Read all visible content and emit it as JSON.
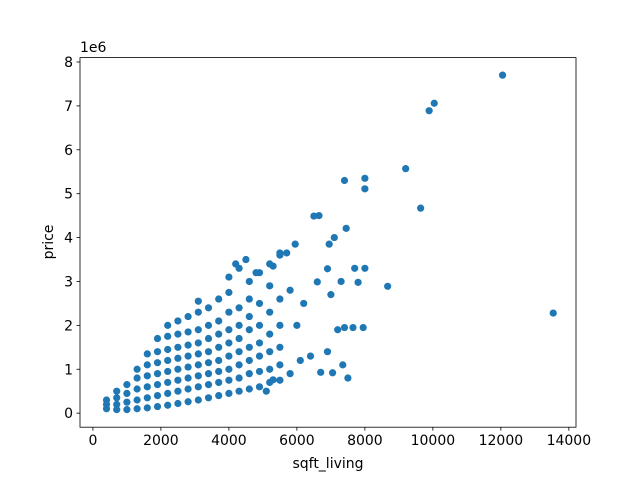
{
  "chart_data": {
    "type": "scatter",
    "xlabel": "sqft_living",
    "ylabel": "price",
    "y_offset_label": "1e6",
    "xlim": [
      -380,
      14210
    ],
    "ylim": [
      -0.32,
      8.1
    ],
    "xticks": [
      0,
      2000,
      4000,
      6000,
      8000,
      10000,
      12000,
      14000
    ],
    "yticks": [
      0,
      1,
      2,
      3,
      4,
      5,
      6,
      7,
      8
    ],
    "grid": false,
    "series": [
      {
        "color": "#1f77b4",
        "x": [
          400,
          400,
          400,
          700,
          700,
          700,
          700,
          1000,
          1000,
          1000,
          1000,
          1300,
          1300,
          1300,
          1300,
          1300,
          1600,
          1600,
          1600,
          1600,
          1600,
          1600,
          1900,
          1900,
          1900,
          1900,
          1900,
          1900,
          1900,
          2200,
          2200,
          2200,
          2200,
          2200,
          2200,
          2200,
          2200,
          2500,
          2500,
          2500,
          2500,
          2500,
          2500,
          2500,
          2500,
          2800,
          2800,
          2800,
          2800,
          2800,
          2800,
          2800,
          2800,
          3100,
          3100,
          3100,
          3100,
          3100,
          3100,
          3100,
          3100,
          3100,
          3400,
          3400,
          3400,
          3400,
          3400,
          3400,
          3400,
          3400,
          3700,
          3700,
          3700,
          3700,
          3700,
          3700,
          3700,
          3700,
          4000,
          4000,
          4000,
          4000,
          4000,
          4000,
          4000,
          4000,
          4000,
          4300,
          4300,
          4300,
          4300,
          4300,
          4300,
          4300,
          4300,
          4600,
          4600,
          4600,
          4600,
          4600,
          4600,
          4600,
          4600,
          4900,
          4900,
          4900,
          4900,
          4900,
          4900,
          4900,
          5200,
          5200,
          5200,
          5200,
          5200,
          5200,
          5200,
          5500,
          5500,
          5500,
          5500,
          5500,
          5500,
          12050,
          10040,
          9890,
          9200,
          8000,
          7400,
          8000,
          9640,
          6500,
          6650,
          7450,
          7100,
          6950,
          5950,
          5500,
          5700,
          13540,
          8670,
          8000,
          7700,
          7300,
          7800,
          6900,
          6600,
          7000,
          7400,
          7650,
          7950,
          7200,
          6900,
          7350,
          7050,
          7500,
          6700,
          6400,
          6100,
          5800,
          5300,
          5100,
          6200,
          6000,
          5800,
          4800,
          4200,
          4500,
          5300
        ],
        "values": [
          0.1,
          0.2,
          0.3,
          0.08,
          0.2,
          0.35,
          0.5,
          0.08,
          0.25,
          0.45,
          0.65,
          0.1,
          0.3,
          0.55,
          0.8,
          1.0,
          0.12,
          0.35,
          0.6,
          0.85,
          1.1,
          1.35,
          0.15,
          0.4,
          0.65,
          0.9,
          1.15,
          1.4,
          1.7,
          0.18,
          0.45,
          0.7,
          0.95,
          1.2,
          1.45,
          1.75,
          2.0,
          0.22,
          0.5,
          0.75,
          1.0,
          1.25,
          1.5,
          1.8,
          2.1,
          0.26,
          0.55,
          0.8,
          1.05,
          1.3,
          1.55,
          1.85,
          2.2,
          0.3,
          0.6,
          0.85,
          1.1,
          1.35,
          1.6,
          1.9,
          2.3,
          2.55,
          0.35,
          0.65,
          0.9,
          1.15,
          1.4,
          1.7,
          2.0,
          2.4,
          0.4,
          0.7,
          0.95,
          1.2,
          1.5,
          1.8,
          2.1,
          2.6,
          0.45,
          0.75,
          1.0,
          1.3,
          1.6,
          1.9,
          2.3,
          2.75,
          3.1,
          0.5,
          0.8,
          1.1,
          1.4,
          1.7,
          2.0,
          2.4,
          3.3,
          0.55,
          0.9,
          1.2,
          1.5,
          1.9,
          2.2,
          2.6,
          3.0,
          0.6,
          0.95,
          1.3,
          1.6,
          2.0,
          2.5,
          3.2,
          0.7,
          1.0,
          1.4,
          1.8,
          2.3,
          2.9,
          3.4,
          0.75,
          1.1,
          1.5,
          2.0,
          2.6,
          3.6,
          7.7,
          7.06,
          6.89,
          5.57,
          5.35,
          5.3,
          5.11,
          4.67,
          4.49,
          4.5,
          4.21,
          4.0,
          3.85,
          3.85,
          3.65,
          3.65,
          2.28,
          2.89,
          3.3,
          3.3,
          3.0,
          2.98,
          3.29,
          2.99,
          2.7,
          1.95,
          1.95,
          1.95,
          1.9,
          1.4,
          1.1,
          0.92,
          0.8,
          0.93,
          1.3,
          1.2,
          0.9,
          0.76,
          0.5,
          2.5,
          2.0,
          2.8,
          3.2,
          3.4,
          3.5,
          3.35
        ]
      }
    ]
  }
}
